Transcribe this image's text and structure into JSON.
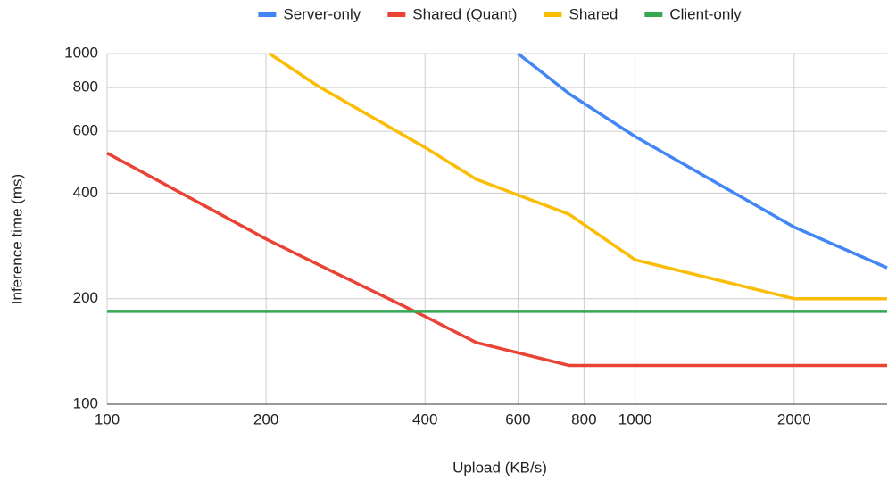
{
  "chart_data": {
    "type": "line",
    "xlabel": "Upload (KB/s)",
    "ylabel": "Inference time (ms)",
    "xscale": "log",
    "yscale": "log",
    "xlim": [
      100,
      3000
    ],
    "ylim": [
      100,
      1000
    ],
    "xticks": [
      100,
      200,
      400,
      600,
      800,
      1000,
      2000
    ],
    "yticks": [
      100,
      200,
      400,
      600,
      800,
      1000
    ],
    "grid": true,
    "legend": "top",
    "series": [
      {
        "name": "Server-only",
        "color": "#4285f4",
        "x": [
          600,
          750,
          1000,
          2000,
          3000
        ],
        "values": [
          1000,
          768,
          580,
          320,
          245
        ]
      },
      {
        "name": "Shared (Quant)",
        "color": "#ea4335",
        "x": [
          100,
          200,
          250,
          400,
          500,
          750,
          1000,
          2000,
          3000
        ],
        "values": [
          520,
          296,
          251,
          178,
          150,
          129,
          129,
          129,
          129
        ]
      },
      {
        "name": "Shared",
        "color": "#fbbc04",
        "x": [
          203,
          250,
          400,
          500,
          600,
          750,
          1000,
          2000,
          3000
        ],
        "values": [
          1000,
          810,
          540,
          438,
          395,
          348,
          258,
          200,
          200
        ]
      },
      {
        "name": "Client-only",
        "color": "#34a853",
        "x": [
          100,
          3000
        ],
        "values": [
          184,
          184
        ]
      }
    ]
  }
}
